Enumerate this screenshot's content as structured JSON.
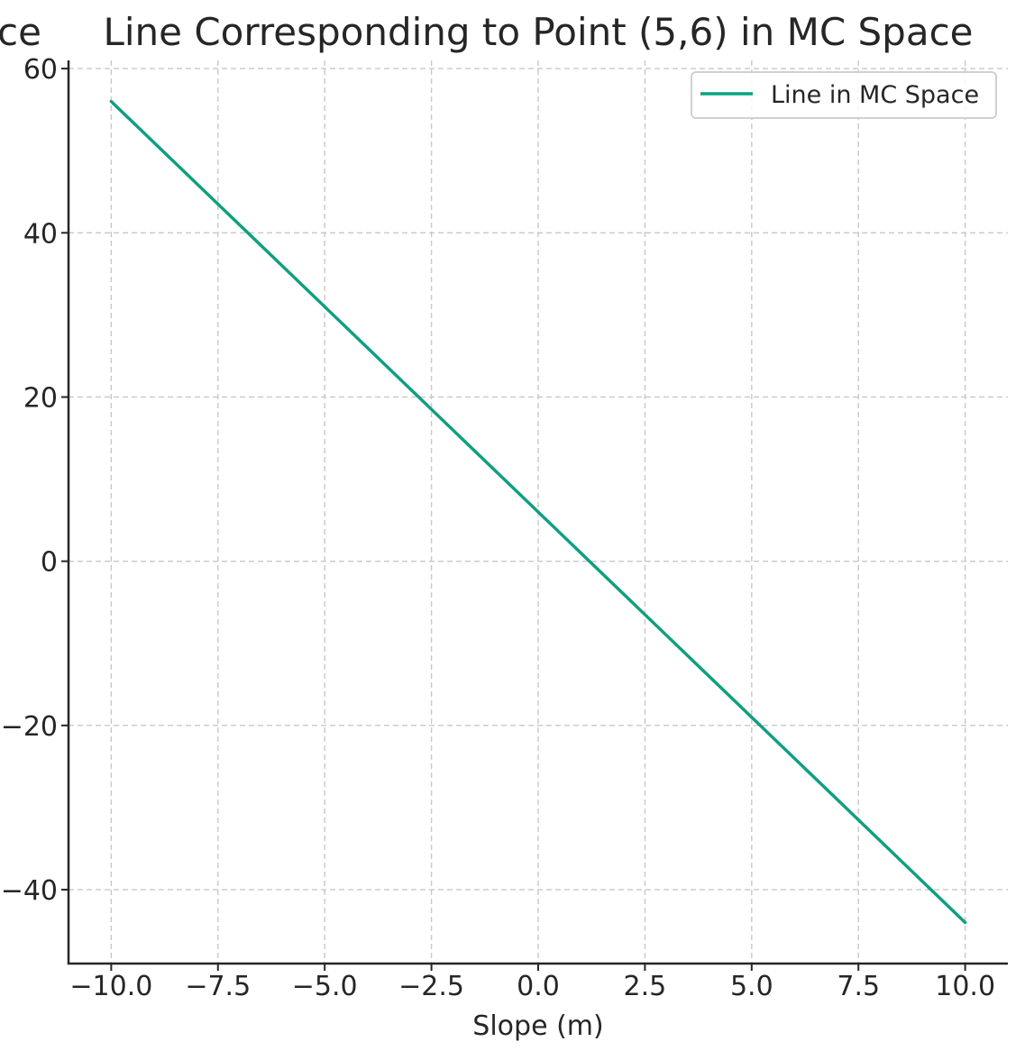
{
  "chart_data": {
    "type": "line",
    "title": "Line Corresponding to Point (5,6) in MC Space",
    "title_fragment_left": "ce",
    "xlabel": "Slope (m)",
    "ylabel": "",
    "xlim": [
      -11,
      11
    ],
    "ylim": [
      -49,
      61
    ],
    "xticks": [
      -10,
      -7.5,
      -5,
      -2.5,
      0,
      2.5,
      5,
      7.5,
      10
    ],
    "xtick_labels": [
      "−10.0",
      "−7.5",
      "−5.0",
      "−2.5",
      "0.0",
      "2.5",
      "5.0",
      "7.5",
      "10.0"
    ],
    "yticks": [
      -40,
      -20,
      0,
      20,
      40,
      60
    ],
    "ytick_labels": [
      "−40",
      "−20",
      "0",
      "20",
      "40",
      "60"
    ],
    "grid": true,
    "legend_position": "top-right",
    "series": [
      {
        "name": "Line in MC Space",
        "color": "#109f7f",
        "x": [
          -10,
          10
        ],
        "y": [
          56,
          -44
        ]
      }
    ]
  }
}
